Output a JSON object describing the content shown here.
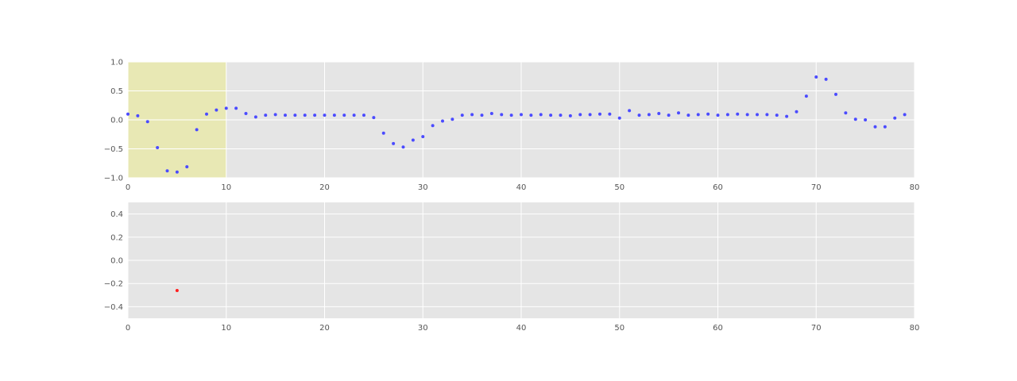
{
  "chart_data": [
    {
      "type": "scatter",
      "xlim": [
        0,
        80
      ],
      "ylim": [
        -1.0,
        1.0
      ],
      "xticks": [
        0,
        10,
        20,
        30,
        40,
        50,
        60,
        70,
        80
      ],
      "xtick_labels": [
        "0",
        "10",
        "20",
        "30",
        "40",
        "50",
        "60",
        "70",
        "80"
      ],
      "yticks": [
        1.0,
        0.5,
        0.0,
        -0.5,
        -1.0
      ],
      "ytick_labels": [
        "1.0",
        "0.5",
        "0.0",
        "−0.5",
        "−1.0"
      ],
      "grid": true,
      "highlight_span": [
        0,
        10
      ],
      "highlight_color": "#e8e8b4",
      "marker_color": "#4b4bff",
      "x": [
        0,
        1,
        2,
        3,
        4,
        5,
        6,
        7,
        8,
        9,
        10,
        11,
        12,
        13,
        14,
        15,
        16,
        17,
        18,
        19,
        20,
        21,
        22,
        23,
        24,
        25,
        26,
        27,
        28,
        29,
        30,
        31,
        32,
        33,
        34,
        35,
        36,
        37,
        38,
        39,
        40,
        41,
        42,
        43,
        44,
        45,
        46,
        47,
        48,
        49,
        50,
        51,
        52,
        53,
        54,
        55,
        56,
        57,
        58,
        59,
        60,
        61,
        62,
        63,
        64,
        65,
        66,
        67,
        68,
        69,
        70,
        71,
        72,
        73,
        74,
        75,
        76,
        77,
        78,
        79
      ],
      "y": [
        0.1,
        0.07,
        -0.03,
        -0.48,
        -0.88,
        -0.9,
        -0.81,
        -0.17,
        0.1,
        0.17,
        0.2,
        0.2,
        0.11,
        0.05,
        0.08,
        0.09,
        0.08,
        0.08,
        0.08,
        0.08,
        0.08,
        0.08,
        0.08,
        0.08,
        0.08,
        0.04,
        -0.23,
        -0.41,
        -0.47,
        -0.35,
        -0.29,
        -0.1,
        -0.02,
        0.01,
        0.08,
        0.09,
        0.08,
        0.11,
        0.09,
        0.08,
        0.09,
        0.08,
        0.09,
        0.08,
        0.08,
        0.07,
        0.09,
        0.09,
        0.1,
        0.1,
        0.03,
        0.16,
        0.08,
        0.09,
        0.11,
        0.08,
        0.12,
        0.08,
        0.09,
        0.1,
        0.08,
        0.09,
        0.1,
        0.09,
        0.09,
        0.09,
        0.08,
        0.06,
        0.14,
        0.41,
        0.74,
        0.7,
        0.44,
        0.12,
        0.01,
        0.0,
        -0.12,
        -0.12,
        0.03,
        0.09
      ]
    },
    {
      "type": "scatter",
      "xlim": [
        0,
        80
      ],
      "ylim": [
        -0.5,
        0.5
      ],
      "xticks": [
        0,
        10,
        20,
        30,
        40,
        50,
        60,
        70,
        80
      ],
      "xtick_labels": [
        "0",
        "10",
        "20",
        "30",
        "40",
        "50",
        "60",
        "70",
        "80"
      ],
      "yticks": [
        0.4,
        0.2,
        0.0,
        -0.2,
        -0.4
      ],
      "ytick_labels": [
        "0.4",
        "0.2",
        "0.0",
        "−0.2",
        "−0.4"
      ],
      "grid": true,
      "marker_color": "#ff2020",
      "x": [
        5
      ],
      "y": [
        -0.26
      ]
    }
  ]
}
